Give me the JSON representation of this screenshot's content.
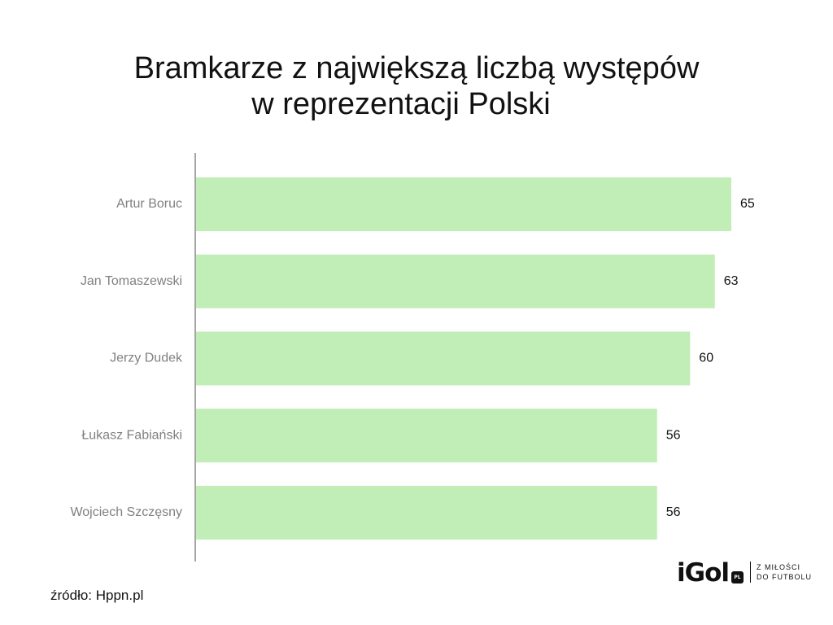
{
  "chart_data": {
    "type": "bar",
    "orientation": "horizontal",
    "title": "Bramkarze z największą liczbą występów w reprezentacji Polski",
    "title_lines": [
      "Bramkarze z największą liczbą występów",
      "w reprezentacji Polski"
    ],
    "categories": [
      "Artur Boruc",
      "Jan Tomaszewski",
      "Jerzy Dudek",
      "Łukasz Fabiański",
      "Wojciech Szczęsny"
    ],
    "values": [
      65,
      63,
      60,
      56,
      56
    ],
    "data_labels": [
      "65",
      "63",
      "60",
      "56",
      "56"
    ],
    "xlabel": "",
    "ylabel": "",
    "xlim": [
      0,
      65
    ],
    "grid": false,
    "legend": "none",
    "bar_color": "#c1edb6",
    "axis_color": "#a6a6a6",
    "category_label_color": "#808080",
    "value_label_color": "#111111"
  },
  "footer": {
    "source": "źródło: Hppn.pl"
  },
  "logo": {
    "wordmark": "iGol",
    "badge": "PL",
    "tagline_line1": "Z MIŁOŚCI",
    "tagline_line2": "DO FUTBOLU"
  }
}
